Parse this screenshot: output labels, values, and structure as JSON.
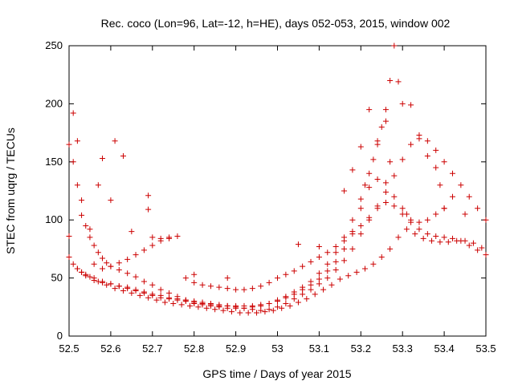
{
  "chart_data": {
    "type": "scatter",
    "title": "Rec. coco (Lon=96, Lat=-12, h=HE), days 052-053, 2015, window 002",
    "xlabel": "GPS time / Days of year 2015",
    "ylabel": "STEC from uqrg / TECUs",
    "xlim": [
      52.5,
      53.5
    ],
    "ylim": [
      0,
      250
    ],
    "xticks": [
      "52.5",
      "52.6",
      "52.7",
      "52.8",
      "52.9",
      "53",
      "53.1",
      "53.2",
      "53.3",
      "53.4",
      "53.5"
    ],
    "yticks": [
      "0",
      "50",
      "100",
      "150",
      "200",
      "250"
    ],
    "marker": "+",
    "color": "#cc0000",
    "grid": false,
    "series": [
      {
        "x": [
          52.5,
          52.51,
          52.52,
          52.53,
          52.54,
          52.55,
          52.56,
          52.57,
          52.58,
          52.59,
          52.6,
          52.62,
          52.64,
          52.66,
          52.68,
          52.7,
          52.72,
          52.74,
          52.76,
          52.78,
          52.8,
          52.82,
          52.84,
          52.86,
          52.88,
          52.9,
          52.92,
          52.94,
          52.96,
          52.98,
          53.0,
          53.02,
          53.04,
          53.06,
          53.08,
          53.1,
          53.12,
          53.14,
          53.16,
          53.18,
          53.2,
          53.21,
          53.22,
          53.23,
          53.24,
          53.25,
          53.26,
          53.27,
          53.28
        ],
        "y": [
          165,
          150,
          130,
          104,
          95,
          85,
          78,
          72,
          67,
          63,
          60,
          57,
          54,
          51,
          47,
          44,
          40,
          37,
          34,
          31,
          28,
          27,
          26,
          25,
          24,
          24,
          24,
          25,
          26,
          28,
          31,
          34,
          38,
          42,
          47,
          54,
          62,
          72,
          85,
          100,
          118,
          130,
          140,
          152,
          165,
          180,
          195,
          220,
          250
        ]
      },
      {
        "x": [
          52.5,
          52.51,
          52.52,
          52.53,
          52.54,
          52.56,
          52.58,
          52.6,
          52.62,
          52.64,
          52.66,
          52.68,
          52.7,
          52.72,
          52.74,
          52.76,
          52.78,
          52.8,
          52.82,
          52.84,
          52.86,
          52.88,
          52.9,
          52.92,
          52.94,
          52.96,
          52.98,
          53.0,
          53.02,
          53.04,
          53.06,
          53.08,
          53.1,
          53.12,
          53.14,
          53.16,
          53.18,
          53.2,
          53.22,
          53.24,
          53.26,
          53.28,
          53.3,
          53.31,
          53.32,
          53.34,
          53.36,
          53.38,
          53.4
        ],
        "y": [
          68,
          62,
          58,
          55,
          53,
          50,
          47,
          45,
          43,
          41,
          39,
          37,
          35,
          33,
          32,
          31,
          30,
          29,
          28,
          27,
          26,
          26,
          26,
          26,
          26,
          27,
          28,
          30,
          33,
          36,
          40,
          44,
          49,
          56,
          64,
          75,
          90,
          110,
          128,
          135,
          132,
          120,
          110,
          105,
          100,
          98,
          100,
          105,
          110
        ]
      },
      {
        "x": [
          52.52,
          52.54,
          52.56,
          52.58,
          52.6,
          52.62,
          52.64,
          52.66,
          52.68,
          52.7,
          52.72,
          52.74,
          52.76,
          52.78,
          52.8,
          52.82,
          52.84,
          52.86,
          52.88,
          52.9,
          52.92,
          52.94,
          52.96,
          52.98,
          53.0,
          53.02,
          53.04,
          53.06,
          53.08,
          53.1,
          53.12,
          53.14,
          53.16,
          53.18,
          53.2,
          53.22,
          53.24,
          53.26,
          53.28,
          53.3,
          53.32,
          53.34,
          53.36,
          53.38,
          53.4,
          53.42,
          53.44,
          53.46,
          53.48,
          53.5
        ],
        "y": [
          58,
          52,
          48,
          46,
          45,
          43,
          42,
          40,
          38,
          36,
          35,
          33,
          32,
          31,
          30,
          29,
          28,
          27,
          26,
          25,
          24,
          23,
          22,
          23,
          25,
          28,
          32,
          36,
          40,
          45,
          50,
          57,
          65,
          75,
          88,
          100,
          110,
          115,
          112,
          105,
          98,
          92,
          88,
          86,
          85,
          84,
          82,
          78,
          74,
          70
        ]
      },
      {
        "x": [
          52.53,
          52.55,
          52.57,
          52.59,
          52.61,
          52.63,
          52.65,
          52.67,
          52.69,
          52.71,
          52.73,
          52.75,
          52.77,
          52.79,
          52.81,
          52.83,
          52.85,
          52.87,
          52.89,
          52.91,
          52.93,
          52.95,
          52.97,
          52.99,
          53.01,
          53.03,
          53.05,
          53.07,
          53.09,
          53.11,
          53.13,
          53.15,
          53.17,
          53.19,
          53.21,
          53.23,
          53.25,
          53.27,
          53.29,
          53.31,
          53.33,
          53.35,
          53.37,
          53.39,
          53.41,
          53.43,
          53.45,
          53.47,
          53.49
        ],
        "y": [
          55,
          51,
          47,
          44,
          41,
          39,
          37,
          35,
          33,
          31,
          29,
          28,
          27,
          26,
          25,
          24,
          23,
          22,
          21,
          20,
          20,
          20,
          21,
          22,
          24,
          26,
          29,
          32,
          36,
          40,
          44,
          49,
          52,
          55,
          58,
          62,
          68,
          75,
          85,
          92,
          88,
          84,
          82,
          81,
          81,
          82,
          82,
          80,
          76
        ]
      },
      {
        "x": [
          52.56,
          52.58,
          52.6,
          52.62,
          52.64,
          52.66,
          52.68,
          52.7,
          52.72,
          52.74,
          52.76,
          52.78,
          52.8,
          52.82,
          52.84,
          52.86,
          52.88,
          52.9,
          52.92,
          52.94,
          52.96,
          52.98,
          53.0,
          53.02,
          53.04,
          53.06,
          53.08,
          53.1,
          53.12,
          53.14,
          53.16,
          53.18,
          53.2,
          53.22,
          53.24,
          53.26,
          53.28,
          53.3,
          53.32,
          53.34,
          53.36,
          53.38,
          53.4,
          53.42,
          53.44,
          53.46,
          53.48,
          53.5
        ],
        "y": [
          62,
          58,
          60,
          63,
          66,
          70,
          74,
          78,
          82,
          84,
          86,
          50,
          46,
          44,
          43,
          42,
          41,
          40,
          40,
          41,
          43,
          46,
          50,
          53,
          56,
          60,
          64,
          68,
          72,
          77,
          82,
          88,
          95,
          102,
          112,
          124,
          138,
          152,
          165,
          170,
          168,
          160,
          150,
          140,
          130,
          120,
          110,
          100
        ]
      },
      {
        "x": [
          52.5,
          52.51,
          52.52,
          52.53,
          52.55,
          52.57,
          52.58,
          52.6,
          52.61,
          52.63,
          52.65,
          52.69,
          52.69,
          52.7,
          52.72,
          52.74,
          52.8,
          52.88,
          53.05,
          53.1,
          53.16,
          53.18,
          53.2,
          53.22,
          53.24,
          53.26,
          53.27,
          53.29,
          53.3,
          53.32,
          53.34,
          53.36,
          53.38,
          53.39,
          53.4,
          53.42,
          53.45
        ],
        "y": [
          86,
          192,
          168,
          117,
          92,
          130,
          153,
          117,
          168,
          155,
          90,
          121,
          109,
          85,
          84,
          85,
          53,
          50,
          79,
          77,
          125,
          143,
          163,
          195,
          168,
          185,
          150,
          219,
          200,
          199,
          173,
          155,
          145,
          130,
          110,
          120,
          105
        ]
      }
    ]
  }
}
